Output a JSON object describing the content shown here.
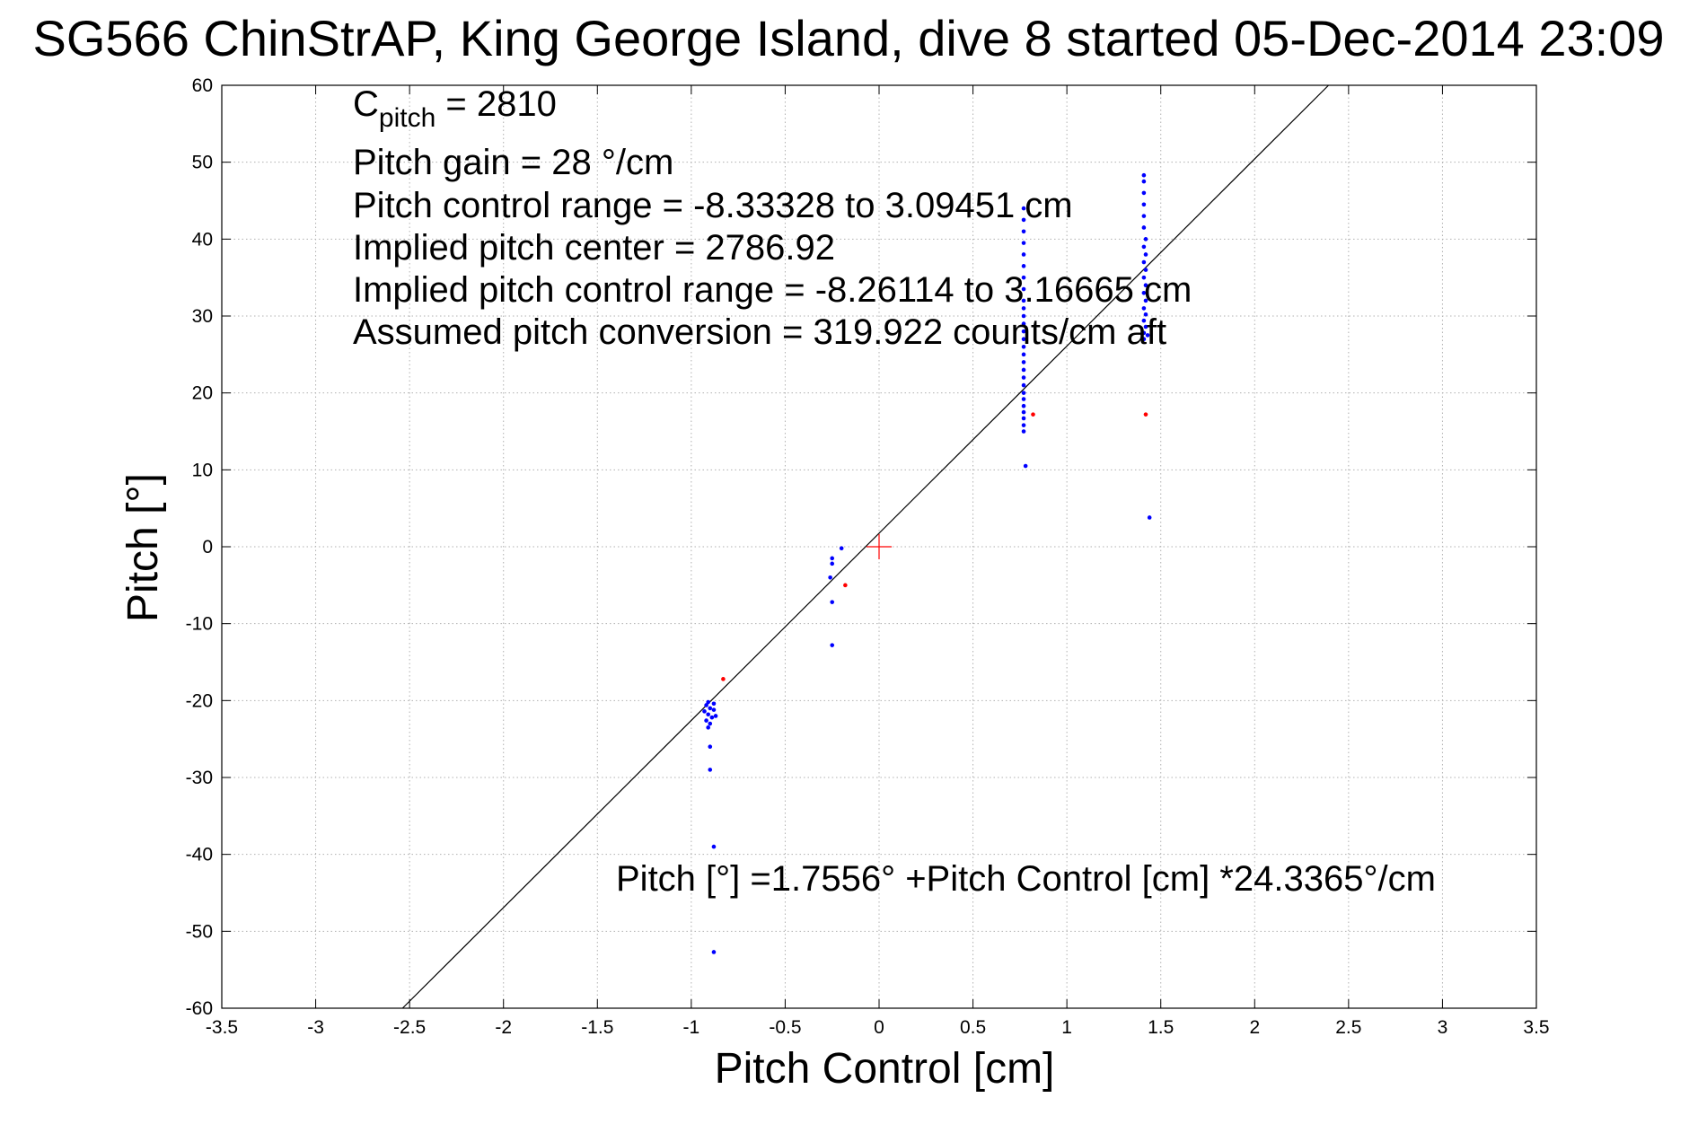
{
  "chart_data": {
    "type": "scatter",
    "title": "SG566 ChinStrAP, King George Island, dive 8 started 05-Dec-2014 23:09",
    "xlabel": "Pitch Control [cm]",
    "ylabel": "Pitch [°]",
    "xlim": [
      -3.5,
      3.5
    ],
    "ylim": [
      -60,
      60
    ],
    "xticks": [
      -3.5,
      -3,
      -2.5,
      -2,
      -1.5,
      -1,
      -0.5,
      0,
      0.5,
      1,
      1.5,
      2,
      2.5,
      3,
      3.5
    ],
    "yticks": [
      -60,
      -50,
      -40,
      -30,
      -20,
      -10,
      0,
      10,
      20,
      30,
      40,
      50,
      60
    ],
    "xtick_labels": [
      "-3.5",
      "-3",
      "-2.5",
      "-2",
      "-1.5",
      "-1",
      "-0.5",
      "0",
      "0.5",
      "1",
      "1.5",
      "2",
      "2.5",
      "3",
      "3.5"
    ],
    "ytick_labels": [
      "-60",
      "-50",
      "-40",
      "-30",
      "-20",
      "-10",
      "0",
      "10",
      "20",
      "30",
      "40",
      "50",
      "60"
    ],
    "grid": true,
    "fit_line": {
      "intercept": 1.7556,
      "slope": 24.3365,
      "color": "#000000"
    },
    "origin_marker": {
      "x": 0,
      "y": 0,
      "color": "#ff0000"
    },
    "series": [
      {
        "color": "#0000ff",
        "points": [
          [
            -0.91,
            -20.2
          ],
          [
            -0.92,
            -20.6
          ],
          [
            -0.9,
            -21.0
          ],
          [
            -0.88,
            -20.4
          ],
          [
            -0.93,
            -21.4
          ],
          [
            -0.91,
            -21.8
          ],
          [
            -0.89,
            -22.2
          ],
          [
            -0.92,
            -22.6
          ],
          [
            -0.9,
            -23.0
          ],
          [
            -0.88,
            -21.2
          ],
          [
            -0.91,
            -23.5
          ],
          [
            -0.87,
            -22.0
          ],
          [
            -0.9,
            -26.0
          ],
          [
            -0.9,
            -29.0
          ],
          [
            -0.88,
            -39.0
          ],
          [
            -0.88,
            -52.7
          ],
          [
            -0.25,
            -1.5
          ],
          [
            -0.25,
            -2.2
          ],
          [
            -0.26,
            -4.0
          ],
          [
            -0.2,
            -0.2
          ],
          [
            -0.25,
            -7.2
          ],
          [
            -0.25,
            -12.8
          ],
          [
            0.77,
            15.0
          ],
          [
            0.77,
            15.8
          ],
          [
            0.77,
            16.7
          ],
          [
            0.77,
            17.5
          ],
          [
            0.77,
            18.3
          ],
          [
            0.77,
            19.2
          ],
          [
            0.77,
            20.0
          ],
          [
            0.77,
            21.0
          ],
          [
            0.77,
            22.0
          ],
          [
            0.77,
            23.0
          ],
          [
            0.77,
            24.0
          ],
          [
            0.77,
            25.0
          ],
          [
            0.77,
            26.0
          ],
          [
            0.77,
            27.0
          ],
          [
            0.77,
            28.0
          ],
          [
            0.77,
            29.0
          ],
          [
            0.77,
            30.0
          ],
          [
            0.77,
            31.0
          ],
          [
            0.77,
            32.0
          ],
          [
            0.77,
            33.5
          ],
          [
            0.77,
            35.0
          ],
          [
            0.77,
            36.5
          ],
          [
            0.77,
            38.0
          ],
          [
            0.77,
            39.5
          ],
          [
            0.77,
            41.0
          ],
          [
            0.77,
            42.5
          ],
          [
            0.77,
            44.0
          ],
          [
            0.78,
            10.5
          ],
          [
            1.41,
            27.0
          ],
          [
            1.41,
            27.8
          ],
          [
            1.42,
            28.6
          ],
          [
            1.41,
            29.4
          ],
          [
            1.42,
            30.2
          ],
          [
            1.41,
            31.0
          ],
          [
            1.42,
            32.0
          ],
          [
            1.41,
            33.0
          ],
          [
            1.42,
            34.0
          ],
          [
            1.41,
            35.0
          ],
          [
            1.42,
            36.0
          ],
          [
            1.41,
            37.0
          ],
          [
            1.42,
            38.0
          ],
          [
            1.41,
            39.0
          ],
          [
            1.42,
            40.0
          ],
          [
            1.41,
            41.5
          ],
          [
            1.41,
            43.0
          ],
          [
            1.41,
            44.5
          ],
          [
            1.41,
            46.0
          ],
          [
            1.41,
            47.5
          ],
          [
            1.41,
            48.3
          ],
          [
            1.43,
            27.5
          ],
          [
            1.44,
            3.8
          ]
        ]
      },
      {
        "color": "#ff0000",
        "points": [
          [
            -0.83,
            -17.2
          ],
          [
            -0.18,
            -5.0
          ],
          [
            0.82,
            17.2
          ],
          [
            1.42,
            17.2
          ]
        ]
      }
    ]
  },
  "annotations": {
    "c_pitch_symbol": "C",
    "c_pitch_sub": "pitch",
    "c_pitch_value": " = 2810",
    "pitch_gain": "Pitch gain = 28 °/cm",
    "control_range": "Pitch control range = -8.33328 to 3.09451 cm",
    "implied_center": "Implied pitch center = 2786.92",
    "implied_range": "Implied pitch control range = -8.26114 to 3.16665 cm",
    "conversion": "Assumed pitch conversion = 319.922 counts/cm aft",
    "fit_equation": "Pitch [°] =1.7556° +Pitch Control [cm] *24.3365°/cm"
  }
}
